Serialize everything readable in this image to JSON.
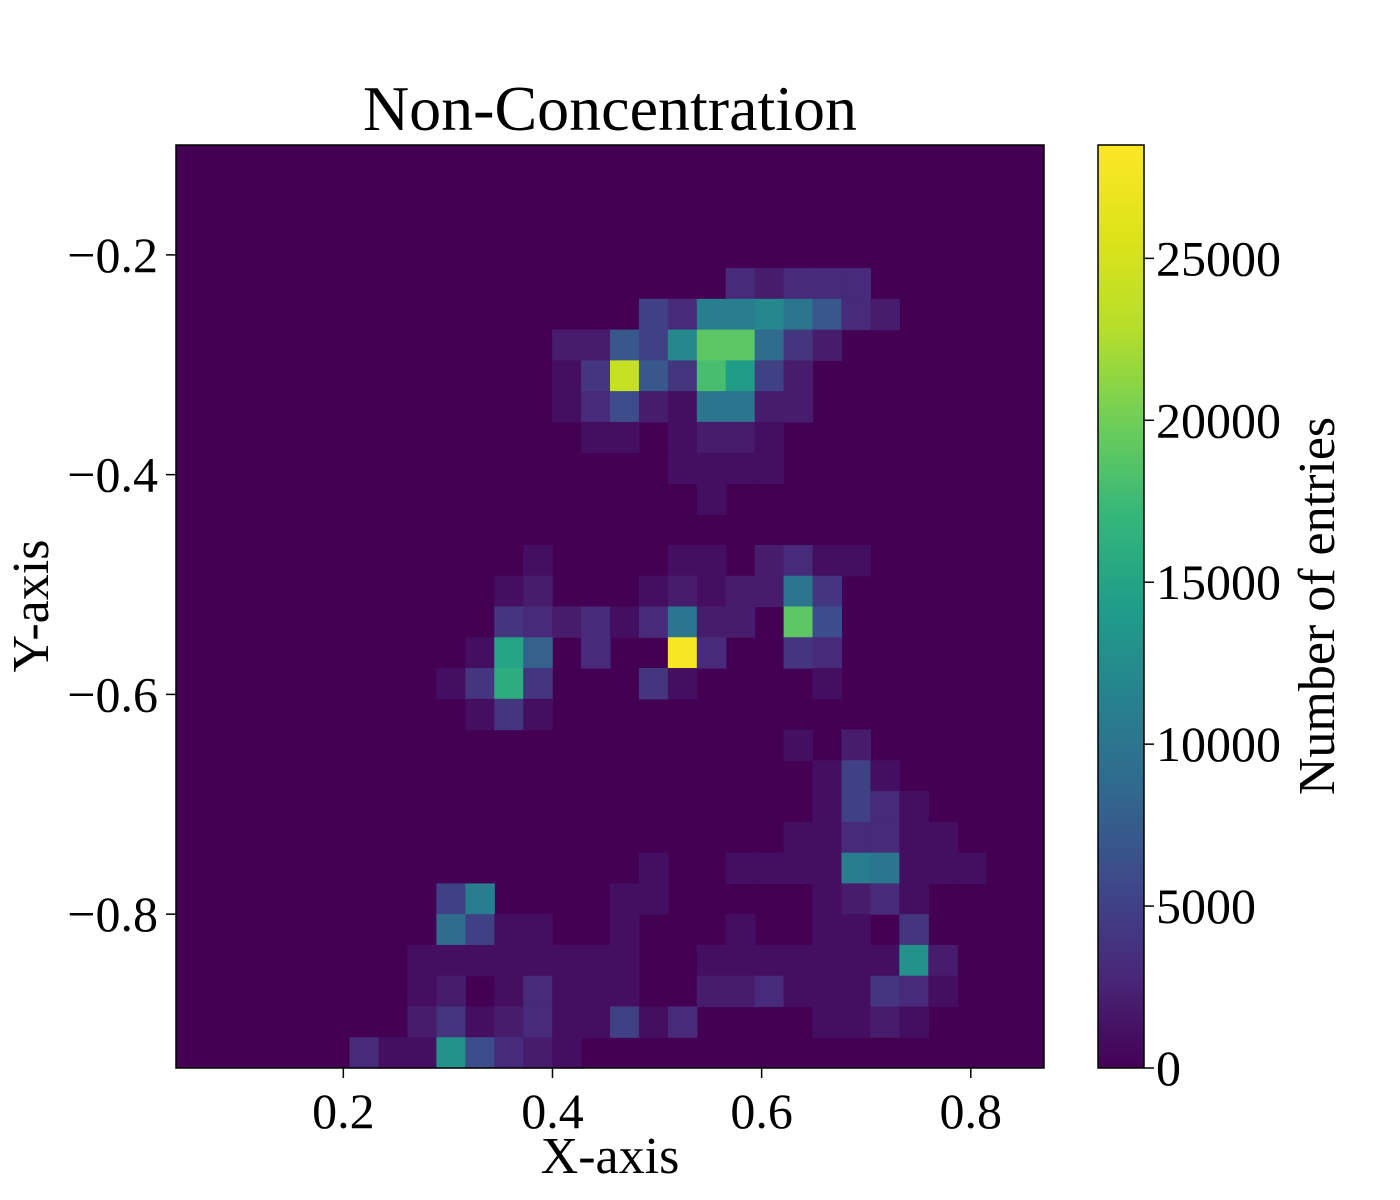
{
  "chart_data": {
    "type": "heatmap",
    "title": "Non-Concentration",
    "xlabel": "X-axis",
    "ylabel": "Y-axis",
    "colorbar_label": "Number of entries",
    "colormap": "viridis",
    "xlim": [
      0.04,
      0.87
    ],
    "ylim": [
      -0.94,
      -0.1
    ],
    "x_ticks": [
      {
        "value": 0.2,
        "label": "0.2"
      },
      {
        "value": 0.4,
        "label": "0.4"
      },
      {
        "value": 0.6,
        "label": "0.6"
      },
      {
        "value": 0.8,
        "label": "0.8"
      }
    ],
    "y_ticks": [
      {
        "value": -0.2,
        "label": "−0.2"
      },
      {
        "value": -0.4,
        "label": "−0.4"
      },
      {
        "value": -0.6,
        "label": "−0.6"
      },
      {
        "value": -0.8,
        "label": "−0.8"
      }
    ],
    "colorbar_range": [
      0,
      28500
    ],
    "colorbar_ticks": [
      {
        "value": 0,
        "label": "0"
      },
      {
        "value": 5000,
        "label": "5000"
      },
      {
        "value": 10000,
        "label": "10000"
      },
      {
        "value": 15000,
        "label": "15000"
      },
      {
        "value": 20000,
        "label": "20000"
      },
      {
        "value": 25000,
        "label": "25000"
      }
    ],
    "bins": {
      "nx": 30,
      "ny": 30
    },
    "cells": [
      [
        19,
        4,
        0.22,
        3
      ],
      [
        20,
        4,
        0.55,
        2
      ],
      [
        21,
        4,
        0.55,
        3
      ],
      [
        22,
        4,
        0.6,
        3
      ],
      [
        23,
        4,
        0.65,
        3
      ],
      [
        16,
        5,
        0.52,
        5
      ],
      [
        17,
        5,
        0.55,
        3
      ],
      [
        18,
        5,
        0.53,
        11
      ],
      [
        19,
        5,
        0.55,
        11
      ],
      [
        20,
        5,
        0.58,
        12
      ],
      [
        21,
        5,
        0.61,
        10
      ],
      [
        22,
        5,
        0.58,
        7
      ],
      [
        23,
        5,
        0.6,
        3
      ],
      [
        24,
        5,
        0.62,
        2
      ],
      [
        13,
        6,
        0.43,
        2
      ],
      [
        14,
        6,
        0.43,
        2
      ],
      [
        15,
        6,
        0.46,
        7
      ],
      [
        16,
        6,
        0.48,
        5
      ],
      [
        17,
        6,
        0.5,
        12
      ],
      [
        18,
        6,
        0.53,
        19
      ],
      [
        19,
        6,
        0.56,
        19
      ],
      [
        20,
        6,
        0.58,
        9
      ],
      [
        21,
        6,
        0.6,
        4
      ],
      [
        22,
        6,
        0.62,
        2
      ],
      [
        13,
        7,
        0.43,
        1
      ],
      [
        14,
        7,
        0.43,
        4
      ],
      [
        15,
        7,
        0.46,
        24
      ],
      [
        16,
        7,
        0.48,
        7
      ],
      [
        17,
        7,
        0.5,
        4
      ],
      [
        18,
        7,
        0.53,
        18
      ],
      [
        19,
        7,
        0.56,
        14
      ],
      [
        20,
        7,
        0.58,
        5
      ],
      [
        21,
        7,
        0.6,
        2
      ],
      [
        13,
        8,
        0.43,
        1
      ],
      [
        14,
        8,
        0.43,
        3
      ],
      [
        15,
        8,
        0.46,
        6
      ],
      [
        16,
        8,
        0.48,
        2
      ],
      [
        17,
        8,
        0.5,
        1
      ],
      [
        18,
        8,
        0.53,
        10
      ],
      [
        19,
        8,
        0.56,
        10
      ],
      [
        20,
        8,
        0.58,
        2
      ],
      [
        21,
        8,
        0.6,
        2
      ],
      [
        14,
        9,
        0.45,
        1
      ],
      [
        15,
        9,
        0.48,
        1
      ],
      [
        17,
        9,
        0.5,
        1
      ],
      [
        18,
        9,
        0.53,
        2
      ],
      [
        19,
        9,
        0.56,
        2
      ],
      [
        20,
        9,
        0.58,
        1
      ],
      [
        17,
        10,
        0.51,
        1
      ],
      [
        18,
        10,
        0.53,
        1
      ],
      [
        19,
        10,
        0.56,
        1
      ],
      [
        20,
        10,
        0.58,
        1
      ],
      [
        18,
        11,
        0.55,
        1
      ],
      [
        12,
        13,
        0.4,
        1
      ],
      [
        17,
        13,
        0.5,
        1
      ],
      [
        18,
        13,
        0.53,
        1
      ],
      [
        20,
        13,
        0.6,
        2
      ],
      [
        21,
        13,
        0.63,
        3
      ],
      [
        22,
        13,
        0.65,
        1
      ],
      [
        23,
        13,
        0.67,
        1
      ],
      [
        11,
        14,
        0.37,
        1
      ],
      [
        12,
        14,
        0.4,
        2
      ],
      [
        16,
        14,
        0.48,
        1
      ],
      [
        17,
        14,
        0.5,
        2
      ],
      [
        18,
        14,
        0.53,
        1
      ],
      [
        19,
        14,
        0.56,
        2
      ],
      [
        20,
        14,
        0.58,
        2
      ],
      [
        21,
        14,
        0.63,
        10
      ],
      [
        22,
        14,
        0.65,
        4
      ],
      [
        11,
        15,
        0.37,
        4
      ],
      [
        12,
        15,
        0.4,
        3
      ],
      [
        13,
        15,
        0.43,
        2
      ],
      [
        14,
        15,
        0.45,
        3
      ],
      [
        15,
        15,
        0.48,
        1
      ],
      [
        16,
        15,
        0.48,
        3
      ],
      [
        17,
        15,
        0.52,
        10
      ],
      [
        18,
        15,
        0.55,
        2
      ],
      [
        19,
        15,
        0.56,
        2
      ],
      [
        21,
        15,
        0.63,
        19
      ],
      [
        22,
        15,
        0.65,
        6
      ],
      [
        10,
        16,
        0.35,
        1
      ],
      [
        11,
        16,
        0.38,
        15
      ],
      [
        12,
        16,
        0.4,
        8
      ],
      [
        14,
        16,
        0.45,
        3
      ],
      [
        17,
        16,
        0.52,
        28
      ],
      [
        18,
        16,
        0.55,
        3
      ],
      [
        21,
        16,
        0.63,
        4
      ],
      [
        22,
        16,
        0.65,
        3
      ],
      [
        9,
        17,
        0.33,
        1
      ],
      [
        10,
        17,
        0.35,
        4
      ],
      [
        11,
        17,
        0.38,
        16
      ],
      [
        12,
        17,
        0.4,
        4
      ],
      [
        16,
        17,
        0.5,
        4
      ],
      [
        17,
        17,
        0.53,
        1
      ],
      [
        22,
        17,
        0.67,
        1
      ],
      [
        10,
        18,
        0.36,
        1
      ],
      [
        11,
        18,
        0.38,
        4
      ],
      [
        12,
        18,
        0.4,
        1
      ],
      [
        21,
        19,
        0.7,
        1
      ],
      [
        23,
        19,
        0.72,
        2
      ],
      [
        22,
        20,
        0.7,
        1
      ],
      [
        23,
        20,
        0.72,
        5
      ],
      [
        24,
        20,
        0.75,
        1
      ],
      [
        22,
        21,
        0.7,
        1
      ],
      [
        23,
        21,
        0.72,
        5
      ],
      [
        24,
        21,
        0.75,
        3
      ],
      [
        25,
        21,
        0.77,
        1
      ],
      [
        21,
        22,
        0.67,
        1
      ],
      [
        22,
        22,
        0.7,
        1
      ],
      [
        23,
        22,
        0.72,
        3
      ],
      [
        24,
        22,
        0.75,
        3
      ],
      [
        25,
        22,
        0.77,
        1
      ],
      [
        26,
        22,
        0.8,
        1
      ],
      [
        16,
        23,
        0.5,
        1
      ],
      [
        19,
        23,
        0.59,
        1
      ],
      [
        20,
        23,
        0.62,
        1
      ],
      [
        21,
        23,
        0.67,
        1
      ],
      [
        22,
        23,
        0.7,
        1
      ],
      [
        23,
        23,
        0.72,
        11
      ],
      [
        24,
        23,
        0.75,
        10
      ],
      [
        25,
        23,
        0.77,
        1
      ],
      [
        26,
        23,
        0.8,
        1
      ],
      [
        27,
        23,
        0.82,
        1
      ],
      [
        9,
        24,
        0.3,
        5
      ],
      [
        10,
        24,
        0.33,
        11
      ],
      [
        15,
        24,
        0.5,
        1
      ],
      [
        16,
        24,
        0.52,
        1
      ],
      [
        22,
        24,
        0.7,
        1
      ],
      [
        23,
        24,
        0.72,
        2
      ],
      [
        24,
        24,
        0.75,
        3
      ],
      [
        25,
        24,
        0.77,
        1
      ],
      [
        9,
        25,
        0.3,
        9
      ],
      [
        10,
        25,
        0.33,
        5
      ],
      [
        11,
        25,
        0.35,
        1
      ],
      [
        12,
        25,
        0.38,
        1
      ],
      [
        15,
        25,
        0.5,
        1
      ],
      [
        19,
        25,
        0.6,
        1
      ],
      [
        22,
        25,
        0.7,
        1
      ],
      [
        23,
        25,
        0.72,
        1
      ],
      [
        25,
        25,
        0.78,
        4
      ],
      [
        8,
        26,
        0.28,
        1
      ],
      [
        9,
        26,
        0.3,
        1
      ],
      [
        10,
        26,
        0.33,
        1
      ],
      [
        11,
        26,
        0.35,
        1
      ],
      [
        12,
        26,
        0.38,
        1
      ],
      [
        13,
        26,
        0.4,
        1
      ],
      [
        14,
        26,
        0.43,
        1
      ],
      [
        15,
        26,
        0.45,
        1
      ],
      [
        18,
        26,
        0.55,
        1
      ],
      [
        19,
        26,
        0.58,
        1
      ],
      [
        20,
        26,
        0.6,
        1
      ],
      [
        21,
        26,
        0.65,
        1
      ],
      [
        22,
        26,
        0.68,
        1
      ],
      [
        23,
        26,
        0.7,
        1
      ],
      [
        24,
        26,
        0.73,
        1
      ],
      [
        25,
        26,
        0.78,
        13
      ],
      [
        26,
        26,
        0.8,
        2
      ],
      [
        8,
        27,
        0.28,
        1
      ],
      [
        9,
        27,
        0.3,
        2
      ],
      [
        11,
        27,
        0.35,
        1
      ],
      [
        12,
        27,
        0.38,
        3
      ],
      [
        13,
        27,
        0.4,
        1
      ],
      [
        14,
        27,
        0.43,
        1
      ],
      [
        15,
        27,
        0.45,
        1
      ],
      [
        18,
        27,
        0.55,
        2
      ],
      [
        19,
        27,
        0.58,
        2
      ],
      [
        20,
        27,
        0.6,
        3
      ],
      [
        21,
        27,
        0.65,
        1
      ],
      [
        22,
        27,
        0.68,
        1
      ],
      [
        23,
        27,
        0.7,
        1
      ],
      [
        24,
        27,
        0.73,
        4
      ],
      [
        25,
        27,
        0.75,
        3
      ],
      [
        26,
        27,
        0.78,
        1
      ],
      [
        8,
        28,
        0.28,
        2
      ],
      [
        9,
        28,
        0.3,
        4
      ],
      [
        10,
        28,
        0.33,
        1
      ],
      [
        11,
        28,
        0.35,
        2
      ],
      [
        12,
        28,
        0.38,
        3
      ],
      [
        13,
        28,
        0.4,
        1
      ],
      [
        14,
        28,
        0.43,
        1
      ],
      [
        15,
        28,
        0.46,
        5
      ],
      [
        16,
        28,
        0.49,
        1
      ],
      [
        17,
        28,
        0.51,
        3
      ],
      [
        22,
        28,
        0.68,
        1
      ],
      [
        23,
        28,
        0.7,
        1
      ],
      [
        24,
        28,
        0.73,
        2
      ],
      [
        25,
        28,
        0.75,
        1
      ],
      [
        6,
        29,
        0.25,
        3
      ],
      [
        7,
        29,
        0.27,
        1
      ],
      [
        8,
        29,
        0.3,
        1
      ],
      [
        9,
        29,
        0.3,
        13
      ],
      [
        10,
        29,
        0.33,
        6
      ],
      [
        11,
        29,
        0.35,
        3
      ],
      [
        12,
        29,
        0.38,
        2
      ],
      [
        13,
        29,
        0.4,
        1
      ],
      [
        9,
        30,
        0.3,
        2
      ],
      [
        10,
        30,
        0.33,
        2
      ],
      [
        11,
        30,
        0.35,
        4
      ],
      [
        12,
        30,
        0.38,
        3
      ],
      [
        13,
        30,
        0.4,
        1
      ],
      [
        14,
        30,
        0.43,
        1
      ]
    ]
  }
}
